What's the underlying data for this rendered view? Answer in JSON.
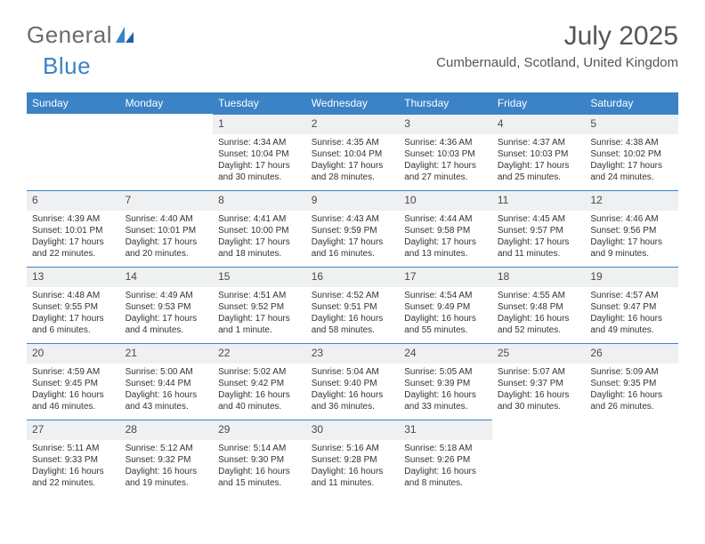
{
  "brand": {
    "part1": "General",
    "part2": "Blue"
  },
  "title": "July 2025",
  "location": "Cumbernauld, Scotland, United Kingdom",
  "colors": {
    "header_bg": "#3b82c6",
    "header_text": "#ffffff",
    "daynum_bg": "#eef0f2",
    "daynum_border": "#3b82c6",
    "page_bg": "#ffffff",
    "text": "#333333",
    "brand_gray": "#6b6b6b",
    "brand_blue": "#3b82c6"
  },
  "weekdays": [
    "Sunday",
    "Monday",
    "Tuesday",
    "Wednesday",
    "Thursday",
    "Friday",
    "Saturday"
  ],
  "weeks": [
    [
      {
        "n": "",
        "sunrise": "",
        "sunset": "",
        "daylight": ""
      },
      {
        "n": "",
        "sunrise": "",
        "sunset": "",
        "daylight": ""
      },
      {
        "n": "1",
        "sunrise": "Sunrise: 4:34 AM",
        "sunset": "Sunset: 10:04 PM",
        "daylight": "Daylight: 17 hours and 30 minutes."
      },
      {
        "n": "2",
        "sunrise": "Sunrise: 4:35 AM",
        "sunset": "Sunset: 10:04 PM",
        "daylight": "Daylight: 17 hours and 28 minutes."
      },
      {
        "n": "3",
        "sunrise": "Sunrise: 4:36 AM",
        "sunset": "Sunset: 10:03 PM",
        "daylight": "Daylight: 17 hours and 27 minutes."
      },
      {
        "n": "4",
        "sunrise": "Sunrise: 4:37 AM",
        "sunset": "Sunset: 10:03 PM",
        "daylight": "Daylight: 17 hours and 25 minutes."
      },
      {
        "n": "5",
        "sunrise": "Sunrise: 4:38 AM",
        "sunset": "Sunset: 10:02 PM",
        "daylight": "Daylight: 17 hours and 24 minutes."
      }
    ],
    [
      {
        "n": "6",
        "sunrise": "Sunrise: 4:39 AM",
        "sunset": "Sunset: 10:01 PM",
        "daylight": "Daylight: 17 hours and 22 minutes."
      },
      {
        "n": "7",
        "sunrise": "Sunrise: 4:40 AM",
        "sunset": "Sunset: 10:01 PM",
        "daylight": "Daylight: 17 hours and 20 minutes."
      },
      {
        "n": "8",
        "sunrise": "Sunrise: 4:41 AM",
        "sunset": "Sunset: 10:00 PM",
        "daylight": "Daylight: 17 hours and 18 minutes."
      },
      {
        "n": "9",
        "sunrise": "Sunrise: 4:43 AM",
        "sunset": "Sunset: 9:59 PM",
        "daylight": "Daylight: 17 hours and 16 minutes."
      },
      {
        "n": "10",
        "sunrise": "Sunrise: 4:44 AM",
        "sunset": "Sunset: 9:58 PM",
        "daylight": "Daylight: 17 hours and 13 minutes."
      },
      {
        "n": "11",
        "sunrise": "Sunrise: 4:45 AM",
        "sunset": "Sunset: 9:57 PM",
        "daylight": "Daylight: 17 hours and 11 minutes."
      },
      {
        "n": "12",
        "sunrise": "Sunrise: 4:46 AM",
        "sunset": "Sunset: 9:56 PM",
        "daylight": "Daylight: 17 hours and 9 minutes."
      }
    ],
    [
      {
        "n": "13",
        "sunrise": "Sunrise: 4:48 AM",
        "sunset": "Sunset: 9:55 PM",
        "daylight": "Daylight: 17 hours and 6 minutes."
      },
      {
        "n": "14",
        "sunrise": "Sunrise: 4:49 AM",
        "sunset": "Sunset: 9:53 PM",
        "daylight": "Daylight: 17 hours and 4 minutes."
      },
      {
        "n": "15",
        "sunrise": "Sunrise: 4:51 AM",
        "sunset": "Sunset: 9:52 PM",
        "daylight": "Daylight: 17 hours and 1 minute."
      },
      {
        "n": "16",
        "sunrise": "Sunrise: 4:52 AM",
        "sunset": "Sunset: 9:51 PM",
        "daylight": "Daylight: 16 hours and 58 minutes."
      },
      {
        "n": "17",
        "sunrise": "Sunrise: 4:54 AM",
        "sunset": "Sunset: 9:49 PM",
        "daylight": "Daylight: 16 hours and 55 minutes."
      },
      {
        "n": "18",
        "sunrise": "Sunrise: 4:55 AM",
        "sunset": "Sunset: 9:48 PM",
        "daylight": "Daylight: 16 hours and 52 minutes."
      },
      {
        "n": "19",
        "sunrise": "Sunrise: 4:57 AM",
        "sunset": "Sunset: 9:47 PM",
        "daylight": "Daylight: 16 hours and 49 minutes."
      }
    ],
    [
      {
        "n": "20",
        "sunrise": "Sunrise: 4:59 AM",
        "sunset": "Sunset: 9:45 PM",
        "daylight": "Daylight: 16 hours and 46 minutes."
      },
      {
        "n": "21",
        "sunrise": "Sunrise: 5:00 AM",
        "sunset": "Sunset: 9:44 PM",
        "daylight": "Daylight: 16 hours and 43 minutes."
      },
      {
        "n": "22",
        "sunrise": "Sunrise: 5:02 AM",
        "sunset": "Sunset: 9:42 PM",
        "daylight": "Daylight: 16 hours and 40 minutes."
      },
      {
        "n": "23",
        "sunrise": "Sunrise: 5:04 AM",
        "sunset": "Sunset: 9:40 PM",
        "daylight": "Daylight: 16 hours and 36 minutes."
      },
      {
        "n": "24",
        "sunrise": "Sunrise: 5:05 AM",
        "sunset": "Sunset: 9:39 PM",
        "daylight": "Daylight: 16 hours and 33 minutes."
      },
      {
        "n": "25",
        "sunrise": "Sunrise: 5:07 AM",
        "sunset": "Sunset: 9:37 PM",
        "daylight": "Daylight: 16 hours and 30 minutes."
      },
      {
        "n": "26",
        "sunrise": "Sunrise: 5:09 AM",
        "sunset": "Sunset: 9:35 PM",
        "daylight": "Daylight: 16 hours and 26 minutes."
      }
    ],
    [
      {
        "n": "27",
        "sunrise": "Sunrise: 5:11 AM",
        "sunset": "Sunset: 9:33 PM",
        "daylight": "Daylight: 16 hours and 22 minutes."
      },
      {
        "n": "28",
        "sunrise": "Sunrise: 5:12 AM",
        "sunset": "Sunset: 9:32 PM",
        "daylight": "Daylight: 16 hours and 19 minutes."
      },
      {
        "n": "29",
        "sunrise": "Sunrise: 5:14 AM",
        "sunset": "Sunset: 9:30 PM",
        "daylight": "Daylight: 16 hours and 15 minutes."
      },
      {
        "n": "30",
        "sunrise": "Sunrise: 5:16 AM",
        "sunset": "Sunset: 9:28 PM",
        "daylight": "Daylight: 16 hours and 11 minutes."
      },
      {
        "n": "31",
        "sunrise": "Sunrise: 5:18 AM",
        "sunset": "Sunset: 9:26 PM",
        "daylight": "Daylight: 16 hours and 8 minutes."
      },
      {
        "n": "",
        "sunrise": "",
        "sunset": "",
        "daylight": ""
      },
      {
        "n": "",
        "sunrise": "",
        "sunset": "",
        "daylight": ""
      }
    ]
  ]
}
